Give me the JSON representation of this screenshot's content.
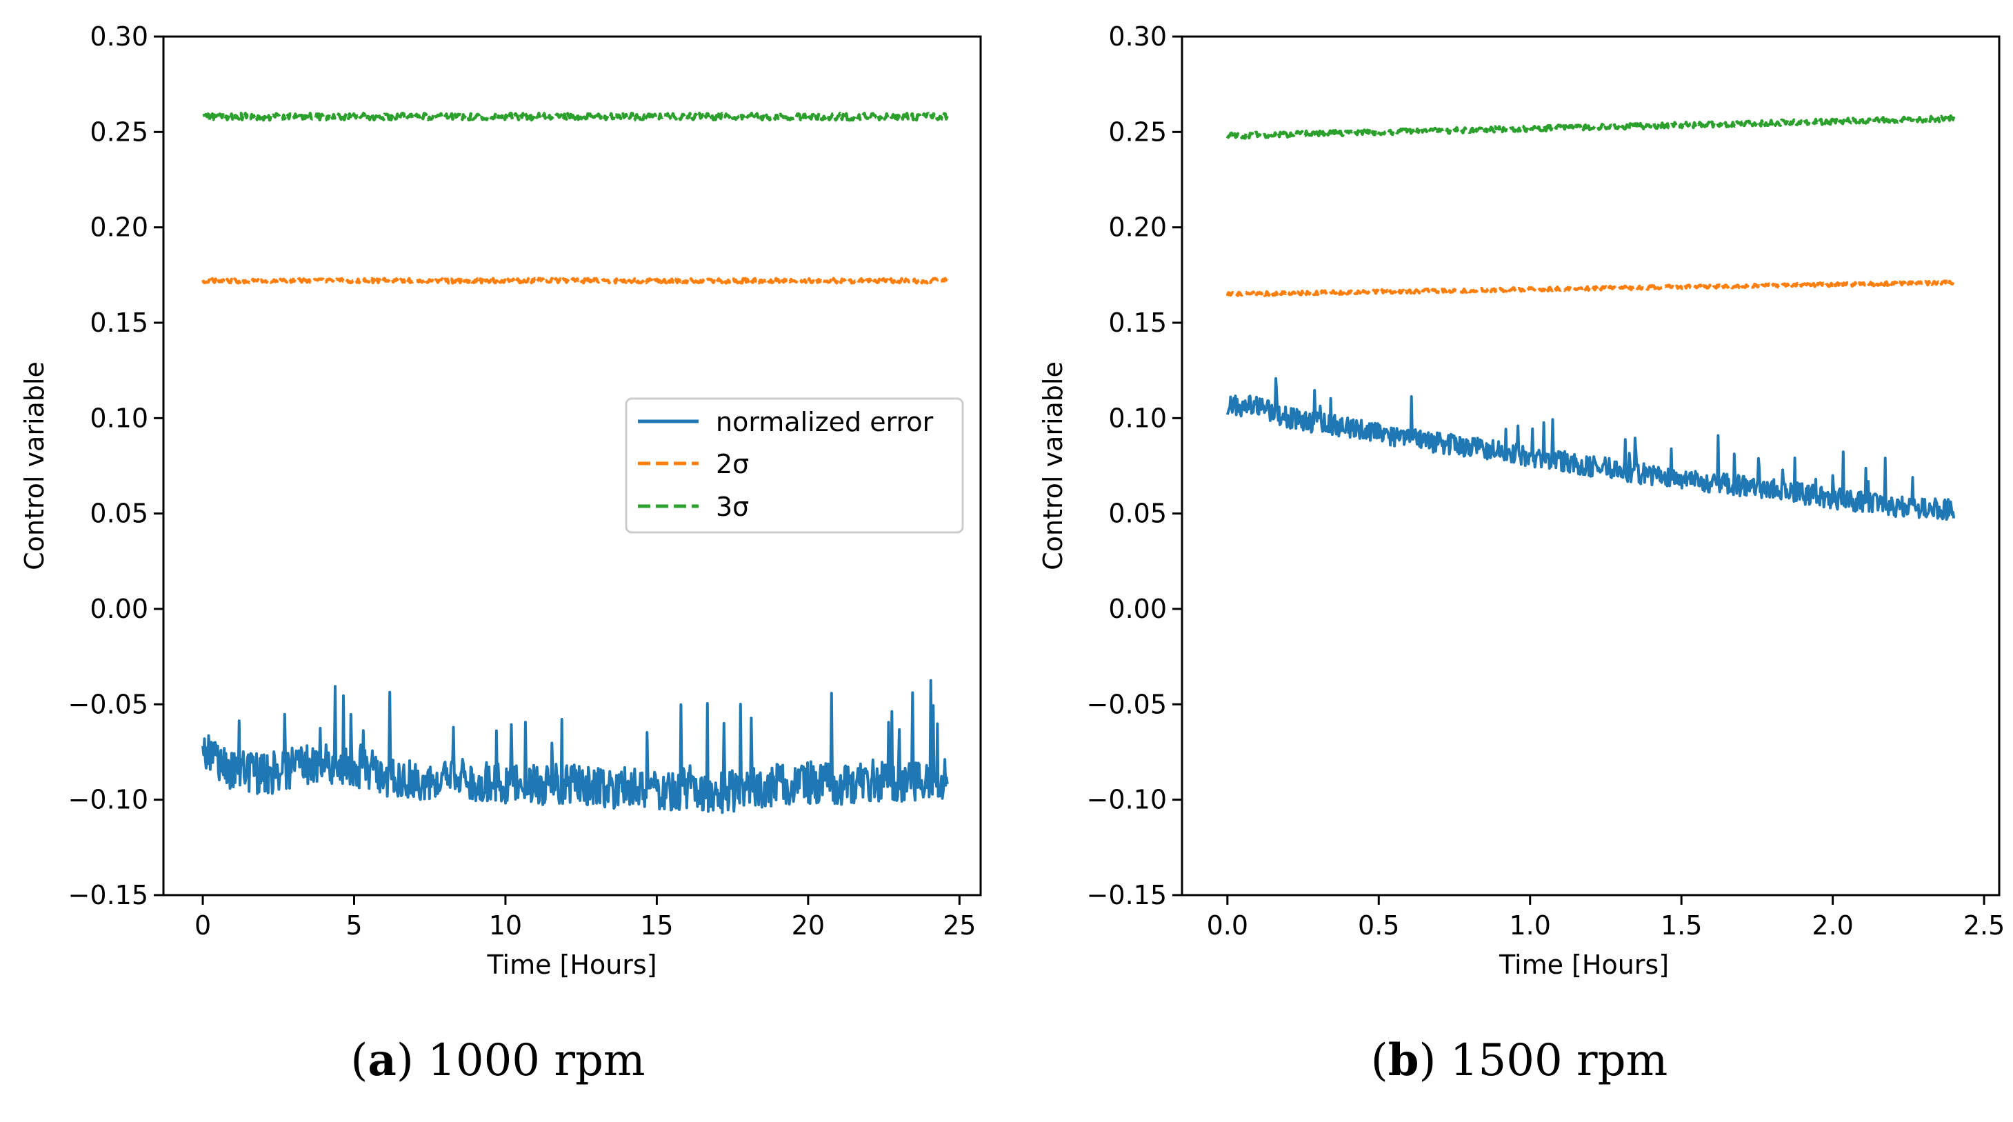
{
  "chart_data": [
    {
      "type": "line",
      "id": "a",
      "xlabel": "Time [Hours]",
      "ylabel": "Control variable",
      "xlim": [
        -1.3,
        25.7
      ],
      "ylim": [
        -0.15,
        0.3
      ],
      "xticks": [
        0,
        5,
        10,
        15,
        20,
        25
      ],
      "xtick_labels": [
        "0",
        "5",
        "10",
        "15",
        "20",
        "25"
      ],
      "yticks": [
        -0.15,
        -0.1,
        -0.05,
        0.0,
        0.05,
        0.1,
        0.15,
        0.2,
        0.25,
        0.3
      ],
      "ytick_labels": [
        "−0.15",
        "−0.10",
        "−0.05",
        "0.00",
        "0.05",
        "0.10",
        "0.15",
        "0.20",
        "0.25",
        "0.30"
      ],
      "legend": {
        "placement": "center-right",
        "entries": [
          "normalized error",
          "2σ",
          "3σ"
        ]
      },
      "series": [
        {
          "name": "normalized error",
          "color": "#1f77b4",
          "style": "solid",
          "noise": 0.011,
          "x": [
            0,
            0.5,
            1,
            2,
            3,
            4,
            5,
            6,
            7,
            8,
            9,
            10,
            11,
            12,
            13,
            14,
            15,
            16,
            17,
            18,
            19,
            20,
            21,
            22,
            23,
            24,
            24.6
          ],
          "values": [
            -0.075,
            -0.08,
            -0.085,
            -0.087,
            -0.083,
            -0.08,
            -0.082,
            -0.087,
            -0.09,
            -0.088,
            -0.09,
            -0.092,
            -0.093,
            -0.092,
            -0.093,
            -0.094,
            -0.095,
            -0.094,
            -0.096,
            -0.095,
            -0.092,
            -0.091,
            -0.092,
            -0.09,
            -0.09,
            -0.089,
            -0.09
          ]
        },
        {
          "name": "2σ",
          "color": "#ff7f0e",
          "style": "dashed",
          "noise": 0.0012,
          "x": [
            0,
            24.6
          ],
          "values": [
            0.172,
            0.172
          ]
        },
        {
          "name": "3σ",
          "color": "#2ca02c",
          "style": "dashed",
          "noise": 0.0018,
          "x": [
            0,
            24.6
          ],
          "values": [
            0.258,
            0.258
          ]
        }
      ],
      "caption": {
        "letter": "a",
        "text": " 1000 rpm"
      }
    },
    {
      "type": "line",
      "id": "b",
      "xlabel": "Time [Hours]",
      "ylabel": "Control variable",
      "xlim": [
        -0.15,
        2.55
      ],
      "ylim": [
        -0.15,
        0.3
      ],
      "xticks": [
        0.0,
        0.5,
        1.0,
        1.5,
        2.0,
        2.5
      ],
      "xtick_labels": [
        "0.0",
        "0.5",
        "1.0",
        "1.5",
        "2.0",
        "2.5"
      ],
      "yticks": [
        -0.15,
        -0.1,
        -0.05,
        0.0,
        0.05,
        0.1,
        0.15,
        0.2,
        0.25,
        0.3
      ],
      "ytick_labels": [
        "−0.15",
        "−0.10",
        "−0.05",
        "0.00",
        "0.05",
        "0.10",
        "0.15",
        "0.20",
        "0.25",
        "0.30"
      ],
      "series": [
        {
          "name": "normalized error",
          "color": "#1f77b4",
          "style": "solid",
          "noise": 0.0055,
          "x": [
            0,
            0.1,
            0.2,
            0.4,
            0.6,
            0.8,
            1.0,
            1.2,
            1.4,
            1.6,
            1.8,
            2.0,
            2.2,
            2.4
          ],
          "values": [
            0.107,
            0.106,
            0.1,
            0.095,
            0.089,
            0.085,
            0.08,
            0.075,
            0.07,
            0.066,
            0.063,
            0.058,
            0.054,
            0.052
          ]
        },
        {
          "name": "2σ",
          "color": "#ff7f0e",
          "style": "dashed",
          "noise": 0.001,
          "x": [
            0,
            2.4
          ],
          "values": [
            0.165,
            0.171
          ]
        },
        {
          "name": "3σ",
          "color": "#2ca02c",
          "style": "dashed",
          "noise": 0.0015,
          "x": [
            0,
            2.4
          ],
          "values": [
            0.248,
            0.257
          ]
        }
      ],
      "caption": {
        "letter": "b",
        "text": " 1500 rpm"
      }
    }
  ]
}
